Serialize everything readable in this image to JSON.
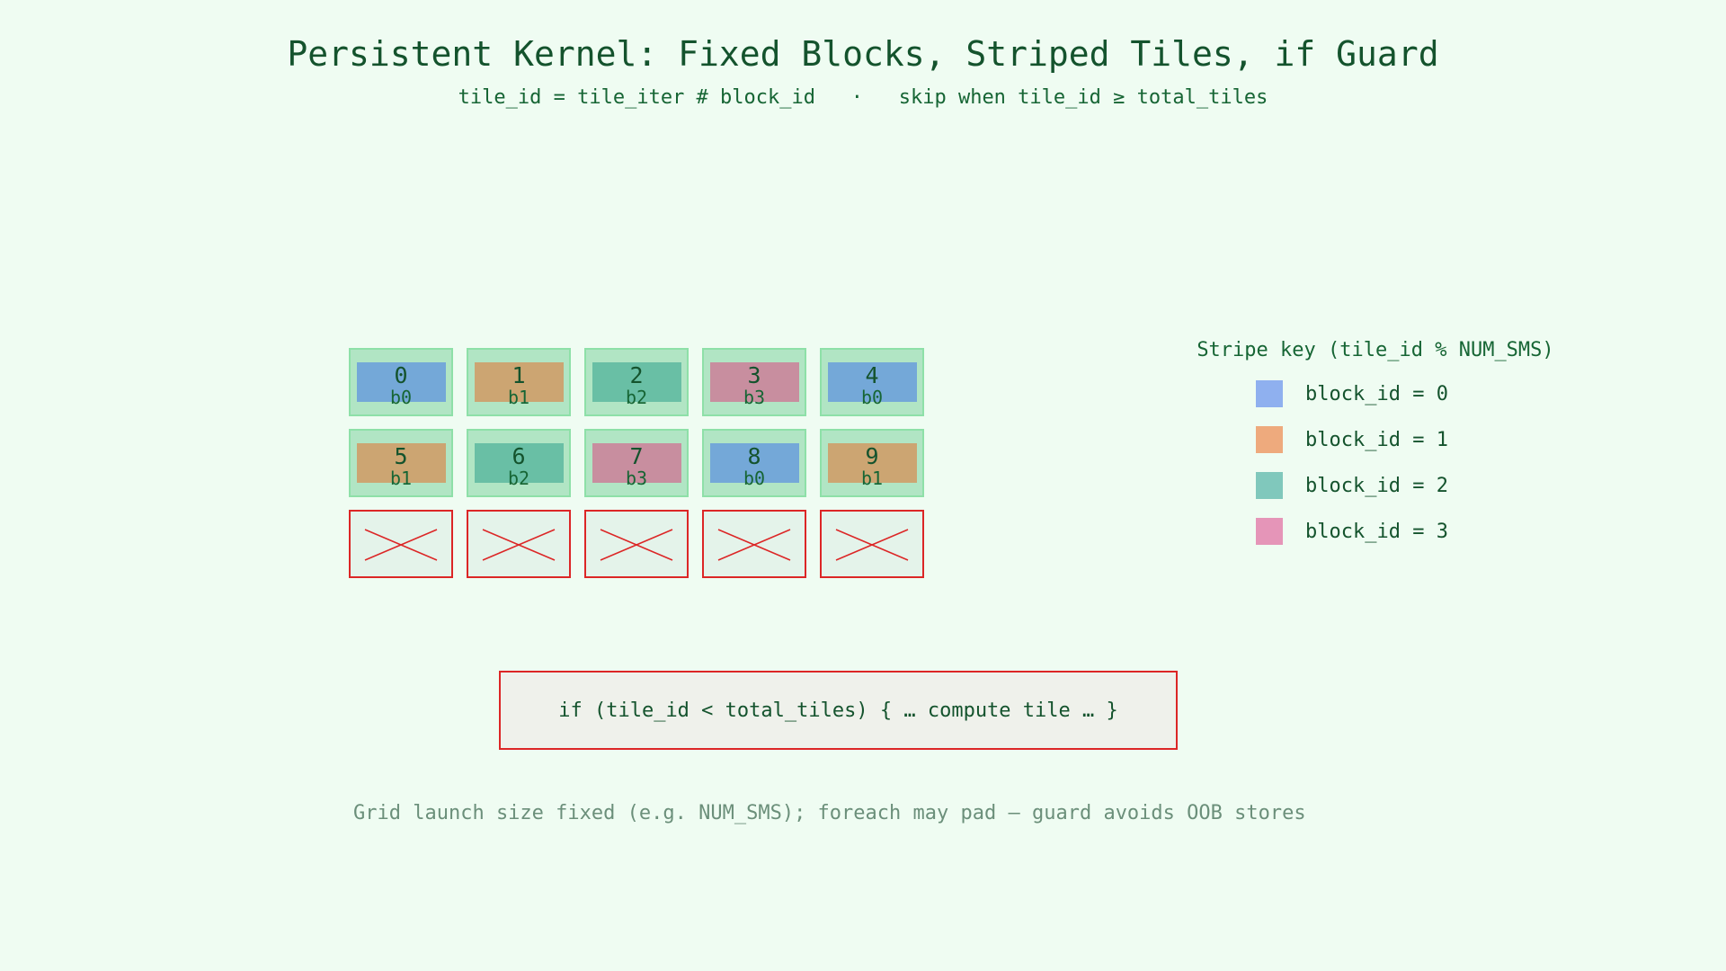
{
  "header": {
    "title": "Persistent Kernel: Fixed Blocks, Striped Tiles, if Guard",
    "subtitle": "tile_id = tile_iter # block_id   ·   skip when tile_id ≥ total_tiles"
  },
  "colors": {
    "background": "#effcf2",
    "tile_frame": "#b1e5c4",
    "guard_red": "#dc2626",
    "block_0": "#74a8d8",
    "block_1": "#cca572",
    "block_2": "#69bfa5",
    "block_3": "#c88e9f"
  },
  "tiles": [
    {
      "id": "0",
      "block": "b0",
      "block_id": 0
    },
    {
      "id": "1",
      "block": "b1",
      "block_id": 1
    },
    {
      "id": "2",
      "block": "b2",
      "block_id": 2
    },
    {
      "id": "3",
      "block": "b3",
      "block_id": 3
    },
    {
      "id": "4",
      "block": "b0",
      "block_id": 0
    },
    {
      "id": "5",
      "block": "b1",
      "block_id": 1
    },
    {
      "id": "6",
      "block": "b2",
      "block_id": 2
    },
    {
      "id": "7",
      "block": "b3",
      "block_id": 3
    },
    {
      "id": "8",
      "block": "b0",
      "block_id": 0
    },
    {
      "id": "9",
      "block": "b1",
      "block_id": 1
    }
  ],
  "padded_tiles_count": 5,
  "legend": {
    "title": "Stripe key (tile_id % NUM_SMS)",
    "items": [
      {
        "label": "block_id = 0",
        "color": "#8fb0ef"
      },
      {
        "label": "block_id = 1",
        "color": "#eeaa7d"
      },
      {
        "label": "block_id = 2",
        "color": "#80c8bc"
      },
      {
        "label": "block_id = 3",
        "color": "#e595b8"
      }
    ]
  },
  "guard": {
    "code": "if (tile_id < total_tiles) { … compute tile … }"
  },
  "footnote": "Grid launch size fixed (e.g. NUM_SMS); foreach may pad — guard avoids OOB stores"
}
